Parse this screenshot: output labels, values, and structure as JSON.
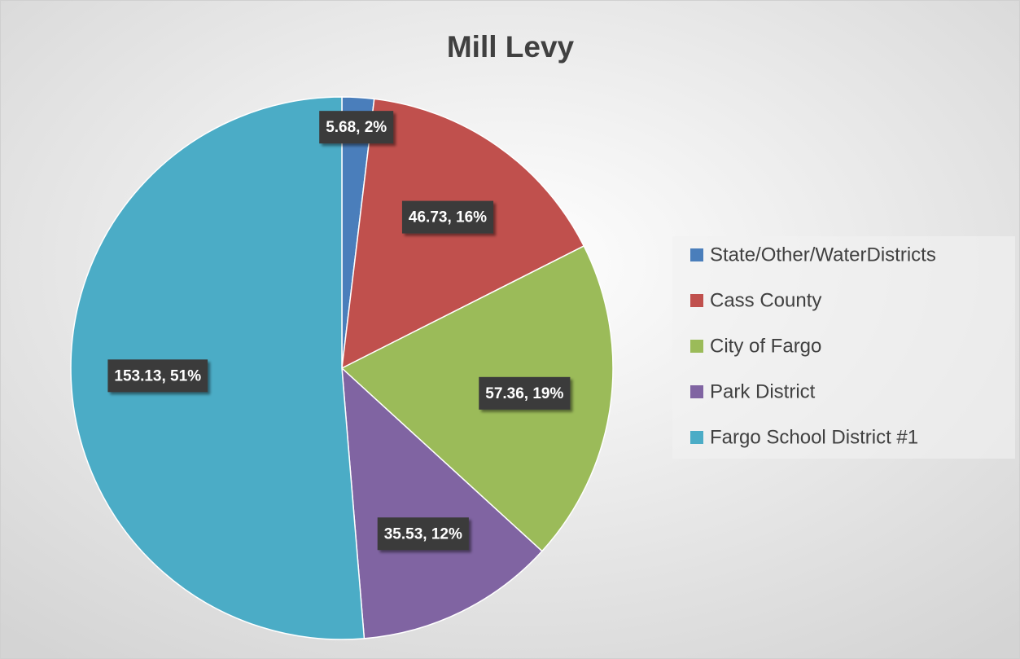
{
  "chart_data": {
    "type": "pie",
    "title": "Mill Levy",
    "categories": [
      "State/Other/WaterDistricts",
      "Cass County",
      "City of Fargo",
      "Park District",
      "Fargo School District #1"
    ],
    "values": [
      5.68,
      46.73,
      57.36,
      35.53,
      153.13
    ],
    "value_labels": [
      "5.68, 2%",
      "46.73, 16%",
      "57.36, 19%",
      "35.53, 12%",
      "153.13, 51%"
    ],
    "colors": [
      "#4a7ebb",
      "#c0504d",
      "#9bbb59",
      "#8064a2",
      "#4bacc6"
    ],
    "legend": "right"
  }
}
